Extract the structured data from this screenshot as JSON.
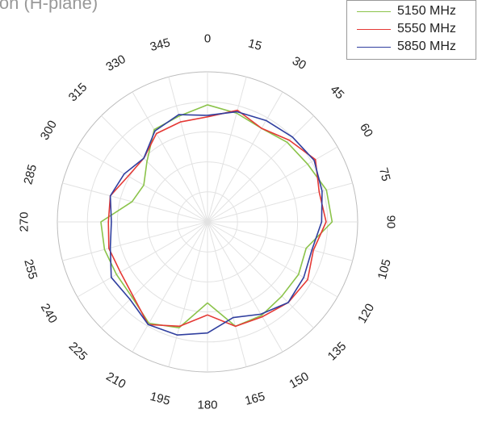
{
  "chart_data": {
    "type": "polar-line",
    "title_partial": "ion (H-plane)",
    "angle_ticks": [
      "0",
      "15",
      "30",
      "45",
      "60",
      "75",
      "90",
      "105",
      "120",
      "135",
      "150",
      "165",
      "180",
      "195",
      "210",
      "225",
      "240",
      "255",
      "270",
      "285",
      "300",
      "315",
      "330",
      "345"
    ],
    "angle_unit": "degrees",
    "radial_rings": 5,
    "radial_ticks_labeled": false,
    "legend_position": "top-right",
    "series": [
      {
        "name": "5150 MHz",
        "color": "#8bc34a",
        "theta": [
          0,
          15,
          30,
          45,
          60,
          75,
          90,
          105,
          120,
          135,
          150,
          165,
          180,
          195,
          210,
          225,
          240,
          255,
          270,
          285,
          300,
          315,
          330,
          345
        ],
        "r": [
          0.78,
          0.75,
          0.72,
          0.75,
          0.77,
          0.82,
          0.83,
          0.68,
          0.7,
          0.7,
          0.72,
          0.72,
          0.54,
          0.73,
          0.78,
          0.71,
          0.7,
          0.71,
          0.71,
          0.52,
          0.49,
          0.57,
          0.71,
          0.73
        ]
      },
      {
        "name": "5550 MHz",
        "color": "#e53935",
        "theta": [
          0,
          15,
          30,
          45,
          60,
          75,
          90,
          105,
          120,
          135,
          150,
          165,
          180,
          195,
          210,
          225,
          240,
          255,
          270,
          285,
          300,
          315,
          330,
          345
        ],
        "r": [
          0.7,
          0.77,
          0.72,
          0.77,
          0.83,
          0.77,
          0.79,
          0.73,
          0.77,
          0.76,
          0.73,
          0.72,
          0.62,
          0.72,
          0.79,
          0.7,
          0.67,
          0.68,
          0.66,
          0.67,
          0.61,
          0.6,
          0.68,
          0.69
        ]
      },
      {
        "name": "5850 MHz",
        "color": "#303f9f",
        "theta": [
          0,
          15,
          30,
          45,
          60,
          75,
          90,
          105,
          120,
          135,
          150,
          165,
          180,
          195,
          210,
          225,
          240,
          255,
          270,
          285,
          300,
          315,
          330,
          345
        ],
        "r": [
          0.71,
          0.76,
          0.78,
          0.8,
          0.82,
          0.79,
          0.76,
          0.72,
          0.74,
          0.76,
          0.71,
          0.66,
          0.74,
          0.78,
          0.79,
          0.73,
          0.74,
          0.67,
          0.64,
          0.67,
          0.64,
          0.6,
          0.7,
          0.74
        ]
      }
    ]
  }
}
